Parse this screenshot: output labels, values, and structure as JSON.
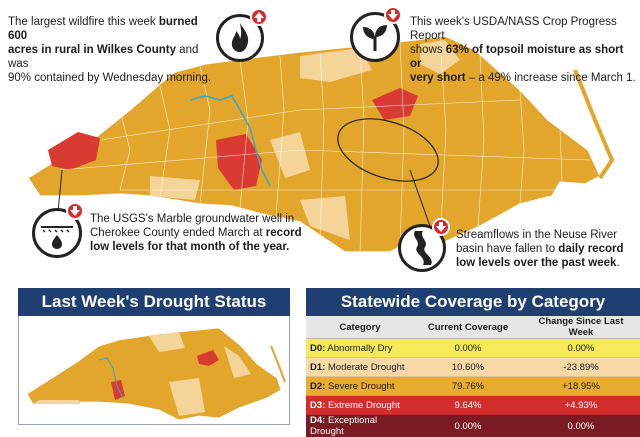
{
  "callouts": {
    "wildfire": {
      "line1_pre": "The largest wildfire this week ",
      "line1_bold": "burned 600",
      "line2_bold": "acres in rural in Wilkes County",
      "line2_post": " and was",
      "line3": "90% contained by Wednesday morning.",
      "icon": "fire-icon",
      "badge": "arrow-up-icon"
    },
    "crop": {
      "line1": "This week's USDA/NASS Crop Progress Report",
      "line2_pre": "shows ",
      "line2_bold": "63% of topsoil moisture as short or",
      "line3_bold": "very short",
      "line3_post": " – a 49% increase since March 1.",
      "icon": "plant-sprout-icon",
      "badge": "arrow-down-icon"
    },
    "groundwater": {
      "line1": "The USGS's Marble groundwater well in",
      "line2_pre": "Cherokee County ended March at ",
      "line2_bold": "record",
      "line3_bold": "low levels for that month of the year.",
      "icon": "groundwater-well-icon",
      "badge": "arrow-down-icon"
    },
    "streamflow": {
      "line1": "Streamflows in the Neuse River",
      "line2_pre": "basin have fallen to ",
      "line2_bold": "daily record",
      "line3_bold": "low levels over the past week",
      "line3_post": ".",
      "icon": "river-icon",
      "badge": "arrow-down-icon"
    }
  },
  "last_week": {
    "title": "Last Week's Drought Status"
  },
  "coverage": {
    "title": "Statewide Coverage by Category",
    "headers": [
      "Category",
      "Current Coverage",
      "Change Since Last Week"
    ],
    "rows": [
      {
        "code": "D0:",
        "label": " Abnormally Dry",
        "current": "0.00%",
        "change": "0.00%",
        "color": "#f4ea5a"
      },
      {
        "code": "D1:",
        "label": " Moderate Drought",
        "current": "10.60%",
        "change": "-23.89%",
        "color": "#f7d9a8"
      },
      {
        "code": "D2:",
        "label": " Severe Drought",
        "current": "79.76%",
        "change": "+18.95%",
        "color": "#e8ac32"
      },
      {
        "code": "D3:",
        "label": " Extreme Drought",
        "current": "9.64%",
        "change": "+4.93%",
        "color": "#d42d2d"
      },
      {
        "code": "D4:",
        "label": " Exceptional Drought",
        "current": "0.00%",
        "change": "0.00%",
        "color": "#7a1a22"
      }
    ]
  },
  "colors": {
    "severe": "#e2a62c",
    "moderate": "#f5d49a",
    "extreme": "#d93a32",
    "river": "#3fa7c4",
    "title_bar": "#1f3f73"
  }
}
